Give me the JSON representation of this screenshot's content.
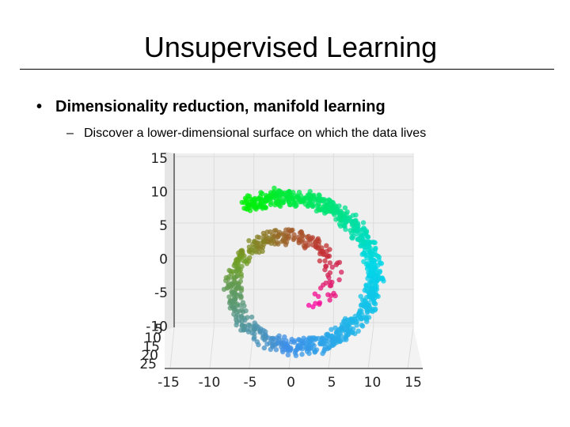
{
  "slide": {
    "title": "Unsupervised Learning",
    "bullet": "Dimensionality reduction, manifold learning",
    "sub_bullet": "Discover a lower-dimensional surface on which the data lives",
    "bullet_symbol": "•",
    "sub_bullet_symbol": "–"
  },
  "chart_data": {
    "type": "scatter",
    "description_kind": "3d-swiss-roll",
    "title": "",
    "y_ticks": [
      "15",
      "10",
      "5",
      "0",
      "-5",
      "-10"
    ],
    "z_ticks": [
      "5",
      "10",
      "15",
      "20",
      "25"
    ],
    "x_ticks": [
      "-15",
      "-10",
      "-5",
      "0",
      "5",
      "10",
      "15"
    ],
    "xlim": [
      -15,
      15
    ],
    "ylim": [
      -10,
      15
    ],
    "grid": true,
    "legend": "none",
    "colormap": [
      "#00f000",
      "#00d8e8",
      "#3e8fe8",
      "#6f9f20",
      "#c23030",
      "#ff00a8"
    ],
    "spiral_turns": [
      0.5,
      2.0
    ]
  }
}
